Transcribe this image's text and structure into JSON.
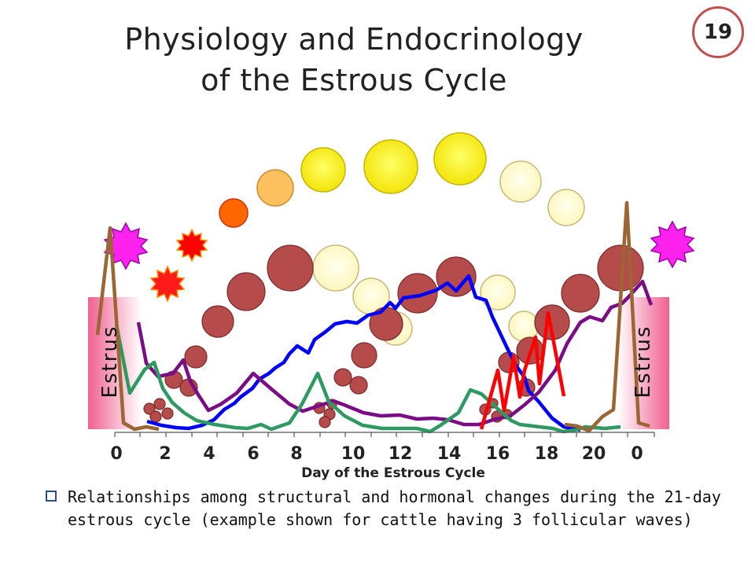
{
  "title_line1": "Physiology and Endocrinology",
  "title_line2": "of the Estrous Cycle",
  "slide_number": "19",
  "estrus_label_left": "Estrus",
  "estrus_label_right": "Estrus",
  "x_axis": {
    "label": "Day of the Estrous Cycle",
    "ticks": [
      "0",
      "2",
      "4",
      "6",
      "8",
      "10",
      "12",
      "14",
      "16",
      "18",
      "20",
      "0"
    ]
  },
  "caption": "Relationships among structural and hormonal changes during the 21-day estrous cycle (example shown for cattle having 3 follicular waves)",
  "colors": {
    "blue_line": "#0000ff",
    "purple_line": "#7a0d86",
    "green_line": "#2e9a62",
    "brown_line": "#9b6534",
    "red_line": "#ff0000",
    "follicle": "#b85050",
    "corpus_luteum_pale": "#fff9cc",
    "estrus_band": "#f07aa0"
  }
}
